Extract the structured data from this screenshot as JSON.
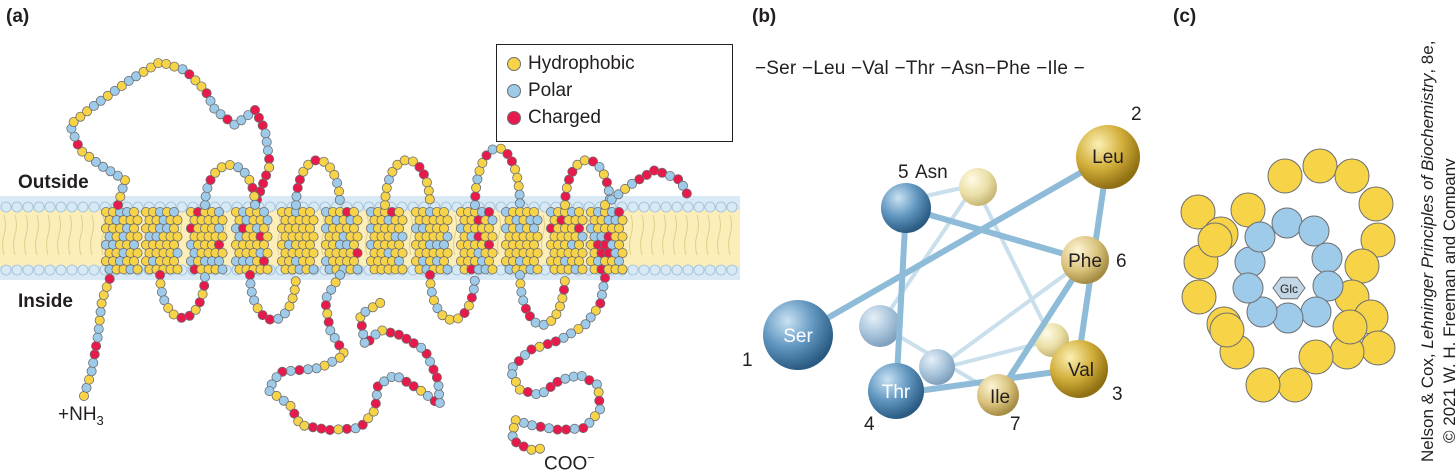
{
  "panel_a": {
    "label": "(a)",
    "outside_label": "Outside",
    "inside_label": "Inside",
    "n_terminus": "+NH",
    "n_terminus_sub": "3",
    "c_terminus": "COO",
    "c_terminus_sup": "−",
    "legend": [
      {
        "label": "Hydrophobic",
        "color": "#f7d348"
      },
      {
        "label": "Polar",
        "color": "#9dcbe9"
      },
      {
        "label": "Charged",
        "color": "#e8194b"
      }
    ]
  },
  "panel_b": {
    "label": "(b)",
    "sequence": "−Ser −Leu −Val −Thr  −Asn−Phe −Ile −",
    "residues": [
      {
        "name": "Ser",
        "number": "1"
      },
      {
        "name": "Leu",
        "number": "2"
      },
      {
        "name": "Val",
        "number": "3"
      },
      {
        "name": "Thr",
        "number": "4"
      },
      {
        "name": "Asn",
        "number": "5"
      },
      {
        "name": "Phe",
        "number": "6"
      },
      {
        "name": "Ile",
        "number": "7"
      }
    ]
  },
  "panel_c": {
    "label": "(c)",
    "center_label": "Glc"
  },
  "credit": {
    "line1_pre": "Nelson & Cox, ",
    "line1_italic": "Lehninger Principles of Biochemistry",
    "line1_post": ", 8e,",
    "line2": "© 2021 W. H. Freeman and Company"
  },
  "colors": {
    "hydrophobic": "#f7d348",
    "polar": "#9dcbe9",
    "charged": "#e8194b",
    "membrane": "#fbeeb8",
    "membrane_head": "#cfe4f2"
  }
}
